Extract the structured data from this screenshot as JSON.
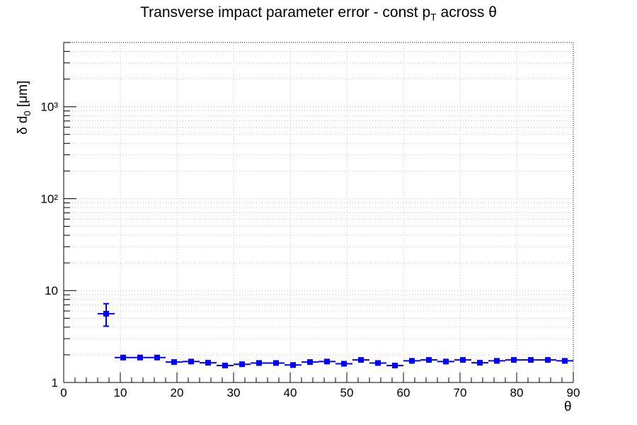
{
  "title": {
    "main": "Transverse impact parameter error - const p",
    "sub": "T",
    "tail": " across θ"
  },
  "axes": {
    "ylabel_main": "δ d",
    "ylabel_sub": "0",
    "ylabel_tail": " [μm]",
    "xlabel": "θ"
  },
  "colors": {
    "marker": "#0000ff",
    "grid": "#c8c8c8",
    "axis": "#000000"
  },
  "chart_data": {
    "type": "scatter",
    "title": "Transverse impact parameter error - const pT across θ",
    "xlabel": "θ",
    "ylabel": "δ d0 [μm]",
    "xlim": [
      0,
      90
    ],
    "ylim": [
      1,
      5000
    ],
    "yscale": "log",
    "grid": true,
    "x_ticks": [
      "0",
      "10",
      "20",
      "30",
      "40",
      "50",
      "60",
      "70",
      "80",
      "90"
    ],
    "y_ticks": [
      "1",
      "10",
      "10²",
      "10³"
    ],
    "series": [
      {
        "x": [
          7.5,
          10.5,
          13.5,
          16.5,
          19.5,
          22.5,
          25.5,
          28.5,
          31.5,
          34.5,
          37.5,
          40.5,
          43.5,
          46.5,
          49.5,
          52.5,
          55.5,
          58.5,
          61.5,
          64.5,
          67.5,
          70.5,
          73.5,
          76.5,
          79.5,
          82.5,
          85.5,
          88.5
        ],
        "x_err": 1.5,
        "y": [
          5.6,
          1.87,
          1.87,
          1.87,
          1.67,
          1.69,
          1.64,
          1.53,
          1.58,
          1.63,
          1.63,
          1.55,
          1.67,
          1.69,
          1.6,
          1.76,
          1.63,
          1.53,
          1.72,
          1.76,
          1.69,
          1.76,
          1.64,
          1.72,
          1.76,
          1.76,
          1.76,
          1.72
        ],
        "y_err_low": [
          1.5,
          0.05,
          0.05,
          0.05,
          0.04,
          0.04,
          0.04,
          0.04,
          0.04,
          0.04,
          0.04,
          0.04,
          0.04,
          0.04,
          0.04,
          0.04,
          0.04,
          0.04,
          0.04,
          0.04,
          0.04,
          0.04,
          0.04,
          0.04,
          0.04,
          0.04,
          0.04,
          0.04
        ],
        "y_err_high": [
          1.6,
          0.05,
          0.05,
          0.05,
          0.04,
          0.04,
          0.04,
          0.04,
          0.04,
          0.04,
          0.04,
          0.04,
          0.04,
          0.04,
          0.04,
          0.04,
          0.04,
          0.04,
          0.04,
          0.04,
          0.04,
          0.04,
          0.04,
          0.04,
          0.04,
          0.04,
          0.04,
          0.04
        ]
      }
    ]
  }
}
